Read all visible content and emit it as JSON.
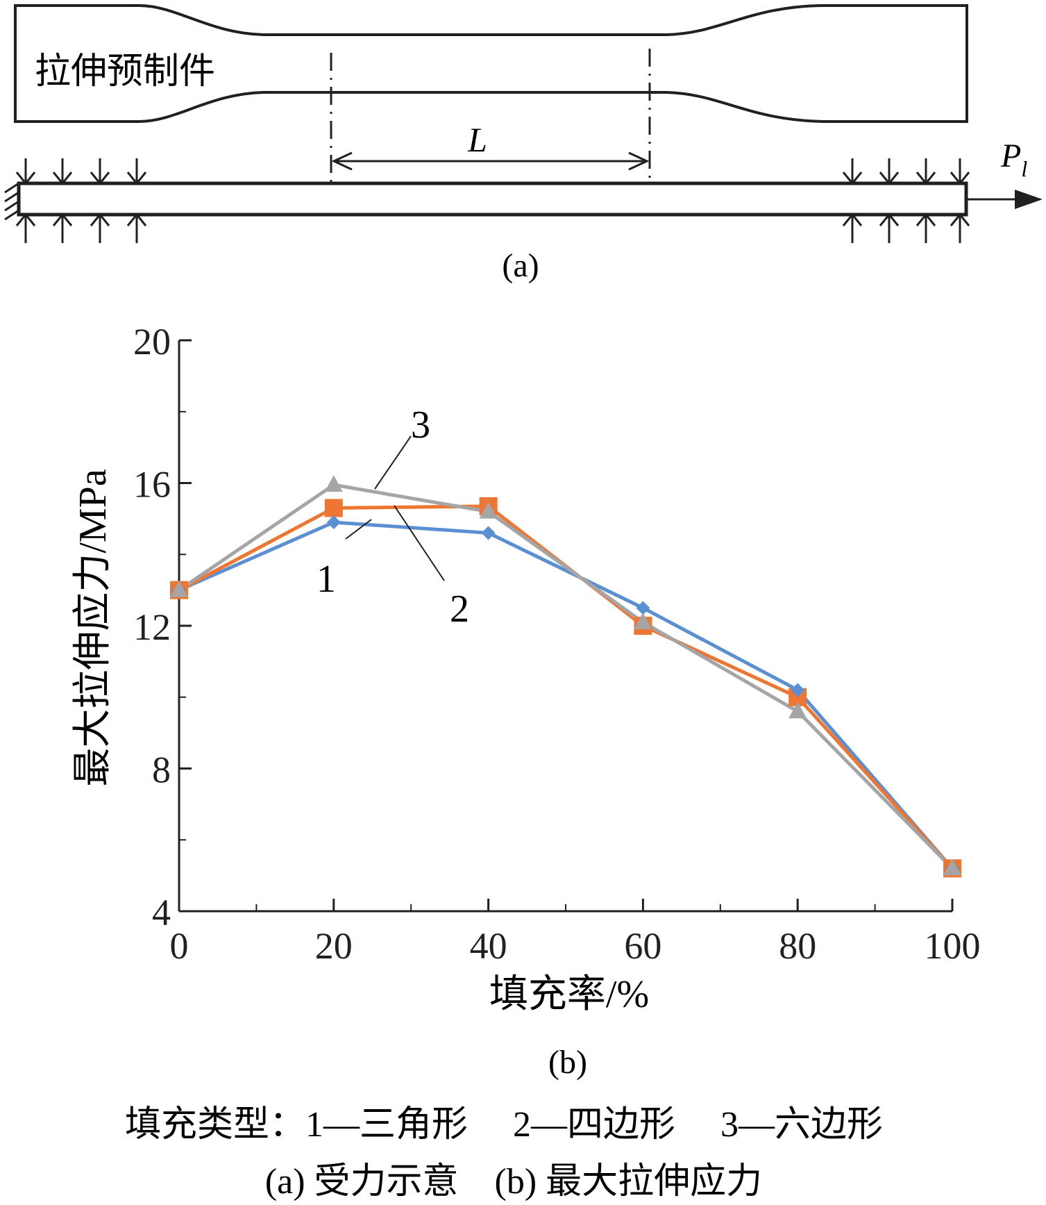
{
  "diagram_a": {
    "specimen_label": "拉伸预制件",
    "length_label": "L",
    "force_label": "P",
    "force_subscript": "l",
    "caption": "(a)"
  },
  "chart_caption": "(b)",
  "legend_line": "填充类型：1—三角形　 2—四边形　 3—六边形",
  "figure_caption": "(a) 受力示意　(b) 最大拉伸应力",
  "colors": {
    "series_1": "#5b8fd3",
    "series_2": "#ed7632",
    "series_3": "#a5a5a5",
    "ink": "#231f20"
  },
  "chart_data": {
    "type": "line",
    "title": "",
    "xlabel": "填充率/%",
    "ylabel": "最大拉伸应力/MPa",
    "x": [
      0,
      20,
      40,
      60,
      80,
      100
    ],
    "xlim": [
      0,
      100
    ],
    "ylim": [
      4,
      20
    ],
    "xticks": [
      "0",
      "20",
      "40",
      "60",
      "80",
      "100"
    ],
    "yticks": [
      "4",
      "8",
      "12",
      "16",
      "20"
    ],
    "grid": false,
    "series": [
      {
        "name": "1",
        "marker": "diamond",
        "values": [
          13.0,
          14.9,
          14.6,
          12.5,
          10.2,
          5.2
        ]
      },
      {
        "name": "2",
        "marker": "square",
        "values": [
          13.0,
          15.3,
          15.35,
          12.0,
          10.0,
          5.2
        ]
      },
      {
        "name": "3",
        "marker": "triangle",
        "values": [
          13.0,
          15.95,
          15.2,
          12.1,
          9.6,
          5.2
        ]
      }
    ]
  }
}
